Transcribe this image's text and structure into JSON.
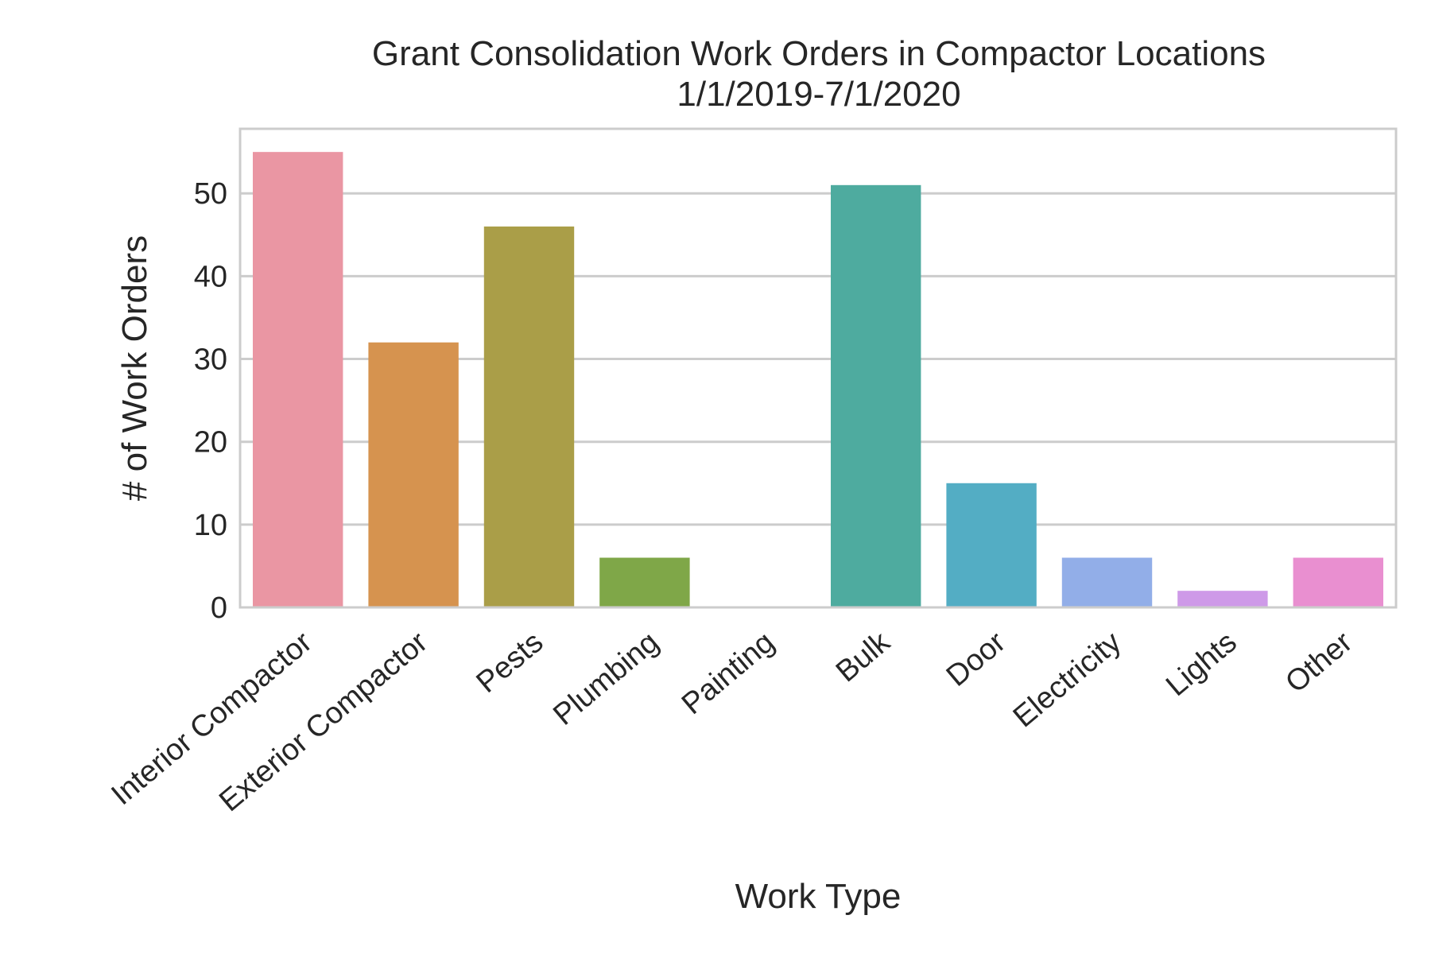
{
  "chart_data": {
    "type": "bar",
    "title": "Grant Consolidation Work Orders in Compactor Locations",
    "subtitle": "1/1/2019-7/1/2020",
    "xlabel": "Work Type",
    "ylabel": "# of Work Orders",
    "categories": [
      "Interior Compactor",
      "Exterior Compactor",
      "Pests",
      "Plumbing",
      "Painting",
      "Bulk",
      "Door",
      "Electricity",
      "Lights",
      "Other"
    ],
    "values": [
      55,
      32,
      46,
      6,
      0,
      51,
      15,
      6,
      2,
      6
    ],
    "colors": [
      "#ea96a3",
      "#d6934f",
      "#aa9e48",
      "#7fa748",
      "#4fa890",
      "#4eab9f",
      "#53adc4",
      "#92aee8",
      "#ce9ae8",
      "#e98fd0"
    ],
    "ylim": [
      0,
      57.8
    ],
    "yticks": [
      0,
      10,
      20,
      30,
      40,
      50
    ],
    "grid": true,
    "gridColor": "#cccccc",
    "spineColor": "#cccccc"
  }
}
